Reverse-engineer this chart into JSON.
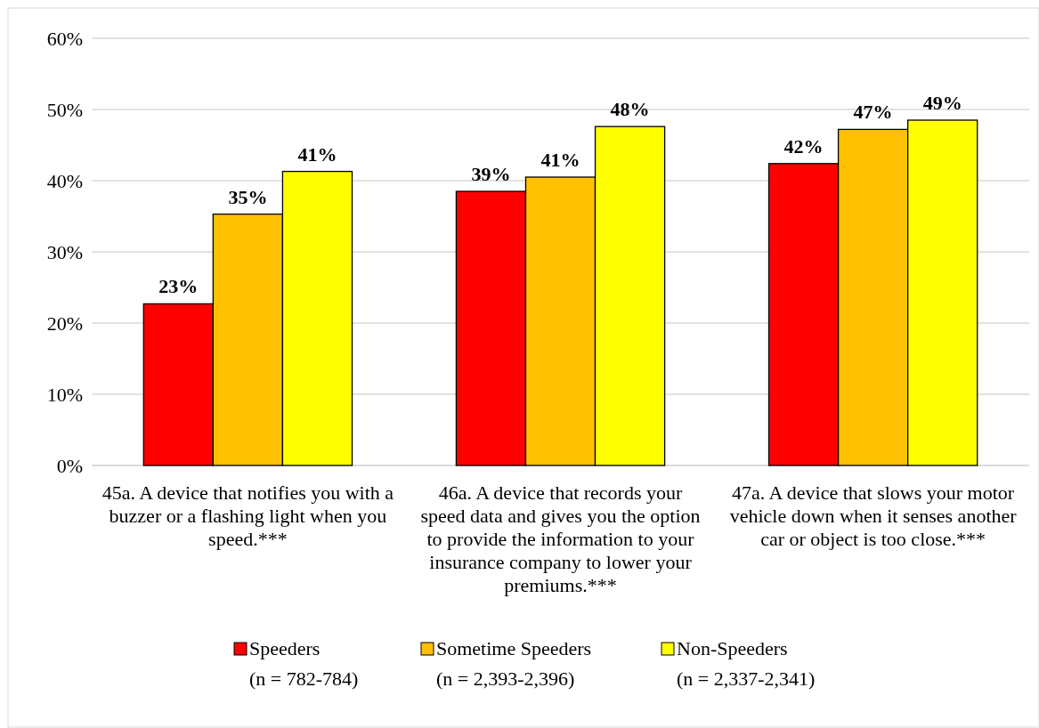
{
  "chart_data": {
    "type": "bar",
    "categories": [
      "45a. A device that notifies you with a buzzer or a flashing light when you speed.***",
      "46a. A device that records your speed data and gives you the option to provide the information to your insurance company to lower your premiums.***",
      "47a. A device that slows your motor vehicle down when it senses another car or object is too close.***"
    ],
    "series": [
      {
        "name": "Speeders (n = 782-784)",
        "color": "#ff0000",
        "values": [
          22.7,
          38.5,
          42.4
        ],
        "value_labels": [
          "23%",
          "39%",
          "42%"
        ]
      },
      {
        "name": "Sometime Speeders (n = 2,393-2,396)",
        "color": "#ffc000",
        "values": [
          35.3,
          40.5,
          47.2
        ],
        "value_labels": [
          "35%",
          "41%",
          "47%"
        ]
      },
      {
        "name": "Non-Speeders (n = 2,337-2,341)",
        "color": "#ffff00",
        "values": [
          41.3,
          47.6,
          48.5
        ],
        "value_labels": [
          "41%",
          "48%",
          "49%"
        ]
      }
    ],
    "ylim": [
      0,
      60
    ],
    "yticks": [
      {
        "value": 0,
        "label": "0%"
      },
      {
        "value": 10,
        "label": "10%"
      },
      {
        "value": 20,
        "label": "20%"
      },
      {
        "value": 30,
        "label": "30%"
      },
      {
        "value": 40,
        "label": "40%"
      },
      {
        "value": 50,
        "label": "50%"
      },
      {
        "value": 60,
        "label": "60%"
      }
    ],
    "grid": "y",
    "legend": "bottom"
  }
}
